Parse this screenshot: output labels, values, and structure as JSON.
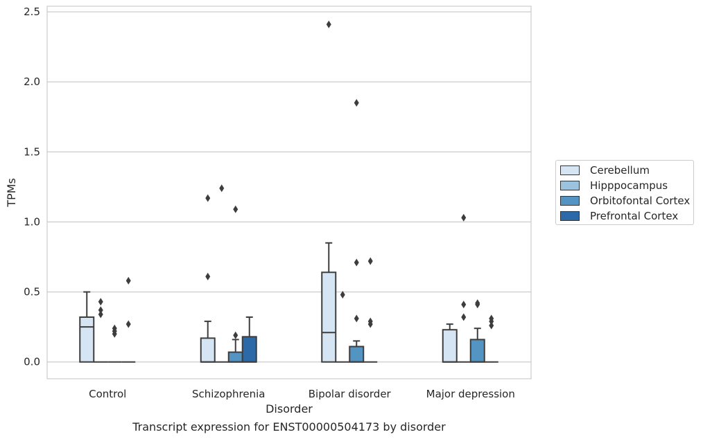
{
  "chart_data": {
    "type": "box",
    "title": "Transcript expression for ENST00000504173 by disorder",
    "xlabel": "Disorder",
    "ylabel": "TPMs",
    "ylim": [
      -0.12,
      2.54
    ],
    "yticks": [
      "0.0",
      "0.5",
      "1.0",
      "1.5",
      "2.0",
      "2.5"
    ],
    "grid": "horizontal",
    "legend_placement": "right",
    "categories": [
      "Control",
      "Schizophrenia",
      "Bipolar disorder",
      "Major depression"
    ],
    "series": [
      {
        "name": "Cerebellum",
        "color": "#d6e5f3",
        "boxes": [
          {
            "q1": 0.0,
            "median": 0.25,
            "q3": 0.32,
            "whisker_low": 0.0,
            "whisker_high": 0.5,
            "outliers": []
          },
          {
            "q1": 0.0,
            "median": 0.0,
            "q3": 0.17,
            "whisker_low": 0.0,
            "whisker_high": 0.29,
            "outliers": [
              0.61,
              1.17
            ]
          },
          {
            "q1": 0.0,
            "median": 0.21,
            "q3": 0.64,
            "whisker_low": 0.0,
            "whisker_high": 0.85,
            "outliers": [
              2.41
            ]
          },
          {
            "q1": 0.0,
            "median": 0.0,
            "q3": 0.23,
            "whisker_low": 0.0,
            "whisker_high": 0.27,
            "outliers": []
          }
        ]
      },
      {
        "name": "Hipppocampus",
        "color": "#9cc3de",
        "boxes": [
          {
            "q1": 0.0,
            "median": 0.0,
            "q3": 0.0,
            "whisker_low": 0.0,
            "whisker_high": 0.0,
            "outliers": [
              0.34,
              0.37,
              0.43
            ]
          },
          {
            "q1": 0.0,
            "median": 0.0,
            "q3": 0.0,
            "whisker_low": 0.0,
            "whisker_high": 0.0,
            "outliers": [
              1.24
            ]
          },
          {
            "q1": 0.0,
            "median": 0.0,
            "q3": 0.0,
            "whisker_low": 0.0,
            "whisker_high": 0.0,
            "outliers": [
              0.48
            ]
          },
          {
            "q1": 0.0,
            "median": 0.0,
            "q3": 0.0,
            "whisker_low": 0.0,
            "whisker_high": 0.0,
            "outliers": [
              0.32,
              0.41,
              1.03
            ]
          }
        ]
      },
      {
        "name": "Orbitofontal Cortex",
        "color": "#5394c3",
        "boxes": [
          {
            "q1": 0.0,
            "median": 0.0,
            "q3": 0.0,
            "whisker_low": 0.0,
            "whisker_high": 0.0,
            "outliers": [
              0.2,
              0.22,
              0.24
            ]
          },
          {
            "q1": 0.0,
            "median": 0.0,
            "q3": 0.07,
            "whisker_low": 0.0,
            "whisker_high": 0.16,
            "outliers": [
              0.19,
              1.09
            ]
          },
          {
            "q1": 0.0,
            "median": 0.0,
            "q3": 0.11,
            "whisker_low": 0.0,
            "whisker_high": 0.15,
            "outliers": [
              0.31,
              0.71,
              1.85
            ]
          },
          {
            "q1": 0.0,
            "median": 0.0,
            "q3": 0.16,
            "whisker_low": 0.0,
            "whisker_high": 0.24,
            "outliers": [
              0.41,
              0.42
            ]
          }
        ]
      },
      {
        "name": "Prefrontal Cortex",
        "color": "#2b69a8",
        "boxes": [
          {
            "q1": 0.0,
            "median": 0.0,
            "q3": 0.0,
            "whisker_low": 0.0,
            "whisker_high": 0.0,
            "outliers": [
              0.27,
              0.58
            ]
          },
          {
            "q1": 0.0,
            "median": 0.0,
            "q3": 0.18,
            "whisker_low": 0.0,
            "whisker_high": 0.32,
            "outliers": []
          },
          {
            "q1": 0.0,
            "median": 0.0,
            "q3": 0.0,
            "whisker_low": 0.0,
            "whisker_high": 0.0,
            "outliers": [
              0.27,
              0.29,
              0.72
            ]
          },
          {
            "q1": 0.0,
            "median": 0.0,
            "q3": 0.0,
            "whisker_low": 0.0,
            "whisker_high": 0.0,
            "outliers": [
              0.26,
              0.29,
              0.31
            ]
          }
        ]
      }
    ]
  }
}
